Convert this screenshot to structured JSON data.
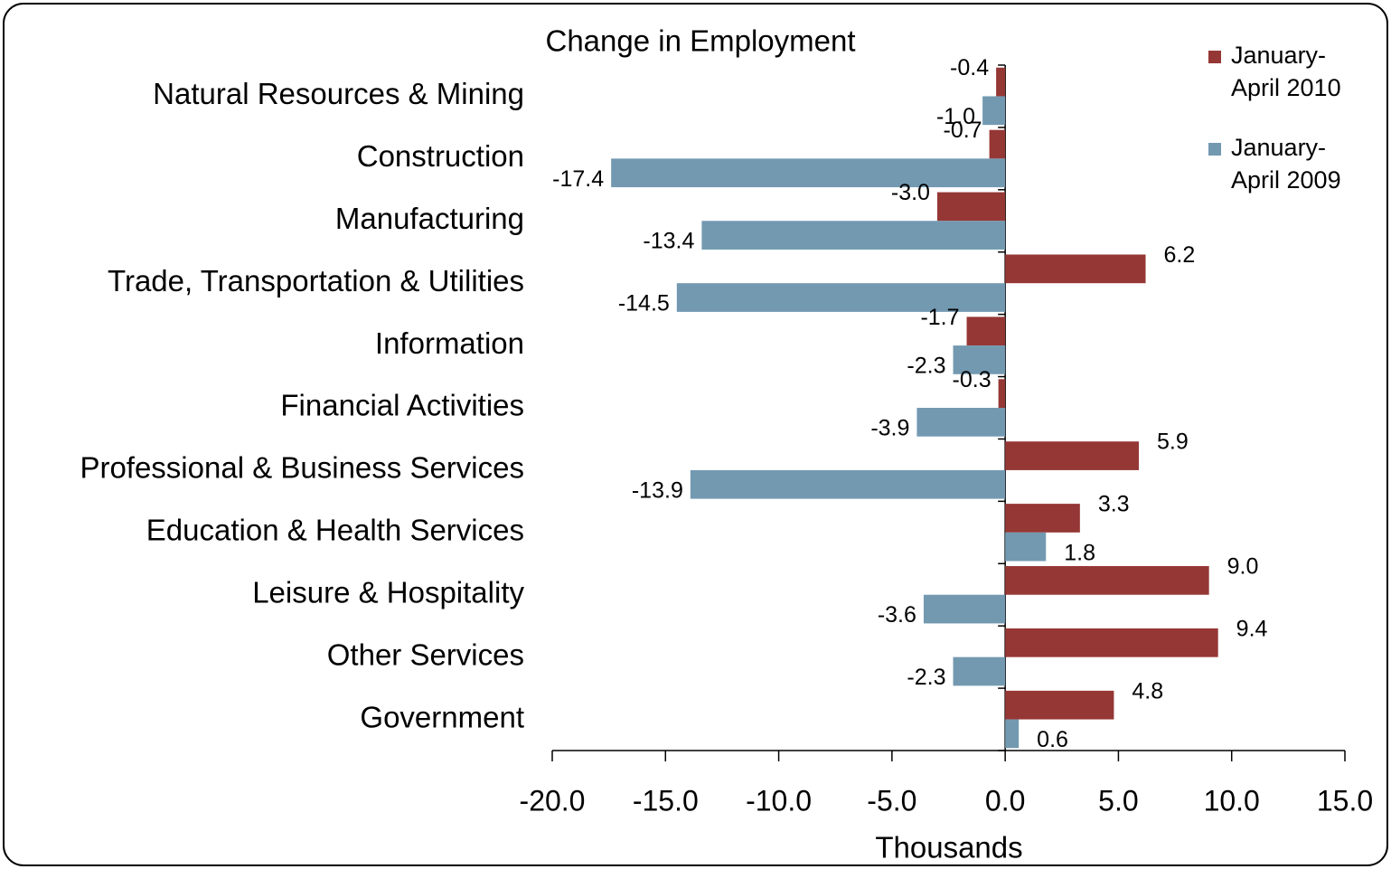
{
  "chart_data": {
    "type": "barh",
    "title": "Change in Employment",
    "xlabel": "Thousands",
    "categories": [
      "Natural Resources & Mining",
      "Construction",
      "Manufacturing",
      "Trade, Transportation & Utilities",
      "Information",
      "Financial Activities",
      "Professional & Business Services",
      "Education & Health Services",
      "Leisure & Hospitality",
      "Other Services",
      "Government"
    ],
    "series": [
      {
        "name": "January-April 2010",
        "color": "#953735",
        "values": [
          -0.4,
          -0.7,
          -3.0,
          6.2,
          -1.7,
          -0.3,
          5.9,
          3.3,
          9.0,
          9.4,
          4.8
        ],
        "value_labels": [
          "-0.4",
          "-0.7",
          "-3.0",
          "6.2",
          "-1.7",
          "-0.3",
          "5.9",
          "3.3",
          "9.0",
          "9.4",
          "4.8"
        ]
      },
      {
        "name": "January-April 2009",
        "color": "#7399b1",
        "values": [
          -1.0,
          -17.4,
          -13.4,
          -14.5,
          -2.3,
          -3.9,
          -13.9,
          1.8,
          -3.6,
          -2.3,
          0.6
        ],
        "value_labels": [
          "-1.0",
          "-17.4",
          "-13.4",
          "-14.5",
          "-2.3",
          "-3.9",
          "-13.9",
          "1.8",
          "-3.6",
          "-2.3",
          "0.6"
        ]
      }
    ],
    "xlim": [
      -20,
      15
    ],
    "xticks": [
      {
        "value": -20,
        "label": "-20.0"
      },
      {
        "value": -15,
        "label": "-15.0"
      },
      {
        "value": -10,
        "label": "-10.0"
      },
      {
        "value": -5,
        "label": "-5.0"
      },
      {
        "value": 0,
        "label": "0.0"
      },
      {
        "value": 5,
        "label": "5.0"
      },
      {
        "value": 10,
        "label": "10.0"
      },
      {
        "value": 15,
        "label": "15.0"
      }
    ],
    "legend": "upper right"
  }
}
